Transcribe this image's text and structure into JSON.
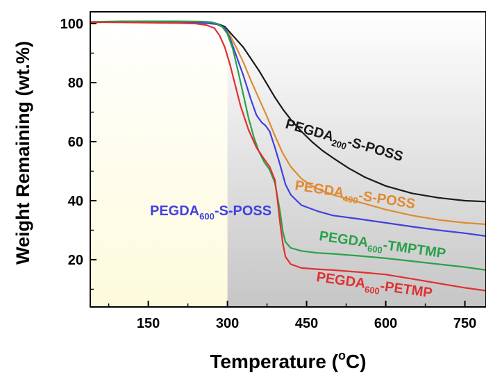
{
  "chart_data": {
    "type": "line",
    "title": "",
    "xlabel": "Temperature (°C)",
    "ylabel": "Weight Remaining (wt.%)",
    "xlim": [
      40,
      790
    ],
    "ylim": [
      4,
      104
    ],
    "x_ticks": [
      150,
      300,
      450,
      600,
      750
    ],
    "y_ticks": [
      20,
      40,
      60,
      80,
      100
    ],
    "grid": false,
    "legend": "inline labels next to curves",
    "shaded_regions": [
      {
        "x_from": 40,
        "x_to": 300,
        "color": "#fdfbdc"
      },
      {
        "x_from": 300,
        "x_to": 790,
        "color": "#c6c6c6"
      }
    ],
    "series": [
      {
        "name": "PEGDA200-S-POSS",
        "label_main": "PEGDA",
        "label_sub": "200",
        "label_rest": "-S-POSS",
        "color": "#1a1a1a",
        "x": [
          40,
          100,
          200,
          250,
          280,
          295,
          305,
          315,
          330,
          345,
          360,
          375,
          390,
          405,
          420,
          440,
          460,
          480,
          500,
          530,
          560,
          600,
          650,
          700,
          750,
          790
        ],
        "y": [
          100.5,
          100.7,
          100.6,
          100.4,
          100,
          99,
          97,
          95,
          92,
          88,
          84,
          79.5,
          75,
          71,
          67.5,
          63.5,
          60,
          57,
          54.5,
          51,
          48,
          45,
          42.5,
          41,
          40,
          39.7
        ]
      },
      {
        "name": "PEGDA400-S-POSS",
        "label_main": "PEGDA",
        "label_sub": "400",
        "label_rest": "-S-POSS",
        "color": "#e08a30",
        "x": [
          40,
          100,
          200,
          250,
          280,
          295,
          305,
          315,
          330,
          345,
          360,
          375,
          390,
          405,
          420,
          440,
          460,
          480,
          500,
          530,
          560,
          600,
          650,
          700,
          750,
          790
        ],
        "y": [
          100.5,
          100.6,
          100.5,
          100.3,
          99.8,
          98.5,
          96,
          92.5,
          87,
          80.5,
          74.5,
          68.5,
          62,
          56,
          51.5,
          47.5,
          45,
          43.3,
          42,
          40.5,
          39,
          37,
          35,
          33.5,
          32.5,
          32
        ]
      },
      {
        "name": "PEGDA600-S-POSS",
        "label_main": "PEGDA",
        "label_sub": "600",
        "label_rest": "-S-POSS",
        "color": "#4040e0",
        "x": [
          40,
          100,
          200,
          250,
          280,
          295,
          305,
          315,
          330,
          345,
          355,
          365,
          372,
          380,
          390,
          400,
          410,
          420,
          440,
          470,
          500,
          550,
          600,
          650,
          700,
          750,
          790
        ],
        "y": [
          100.4,
          100.6,
          100.5,
          100.3,
          99.8,
          98.5,
          95,
          90,
          82.5,
          74,
          69,
          66.5,
          65.5,
          63.5,
          58,
          52,
          45.5,
          42,
          38.5,
          36.5,
          35,
          33.8,
          32.5,
          31.2,
          30,
          29,
          28
        ]
      },
      {
        "name": "PEGDA600-TMPTMP",
        "label_main": "PEGDA",
        "label_sub": "600",
        "label_rest": "-TMPTMP",
        "color": "#2aa04a",
        "x": [
          40,
          100,
          200,
          250,
          270,
          280,
          290,
          300,
          310,
          320,
          330,
          340,
          350,
          360,
          370,
          380,
          390,
          400,
          405,
          410,
          420,
          440,
          470,
          500,
          550,
          600,
          650,
          700,
          750,
          790
        ],
        "y": [
          100.6,
          100.8,
          100.8,
          100.7,
          100.5,
          100,
          99,
          96.5,
          91.5,
          84,
          76,
          68,
          61.5,
          56.5,
          53,
          50.5,
          46,
          36,
          29.5,
          26,
          24,
          23,
          22.3,
          22,
          21.3,
          20.5,
          19.5,
          18.5,
          17.5,
          16.5
        ]
      },
      {
        "name": "PEGDA600-PETMP",
        "label_main": "PEGDA",
        "label_sub": "600",
        "label_rest": "-PETMP",
        "color": "#e03030",
        "x": [
          40,
          100,
          200,
          240,
          260,
          275,
          285,
          295,
          305,
          315,
          325,
          340,
          355,
          370,
          380,
          390,
          395,
          400,
          405,
          410,
          420,
          440,
          470,
          500,
          550,
          600,
          650,
          700,
          750,
          790
        ],
        "y": [
          100.5,
          100.4,
          100.2,
          100,
          99.5,
          98.5,
          96,
          92,
          86,
          79,
          72,
          64,
          58,
          54,
          51.5,
          47,
          40,
          32,
          25.5,
          21,
          18.5,
          17.2,
          16.8,
          16.5,
          15.8,
          15,
          13.5,
          12,
          10.5,
          9.5
        ]
      }
    ]
  }
}
